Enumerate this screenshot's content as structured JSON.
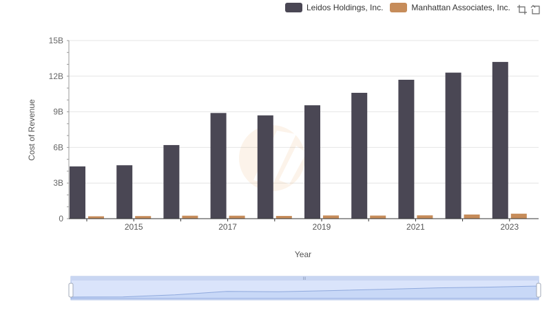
{
  "chart_data": {
    "type": "bar",
    "title": "",
    "xlabel": "Year",
    "ylabel": "Cost of Revenue",
    "categories": [
      "2014",
      "2015",
      "2016",
      "2017",
      "2018",
      "2019",
      "2020",
      "2021",
      "2022",
      "2023"
    ],
    "x_tick_labels": [
      "2015",
      "2017",
      "2019",
      "2021",
      "2023"
    ],
    "y_tick_labels": [
      "0",
      "3B",
      "6B",
      "9B",
      "12B",
      "15B"
    ],
    "ylim": [
      0,
      15
    ],
    "y_unit": "billions",
    "series": [
      {
        "name": "Leidos Holdings, Inc.",
        "color": "#4a4754",
        "values": [
          4.4,
          4.5,
          6.2,
          8.9,
          8.7,
          9.55,
          10.6,
          11.7,
          12.3,
          13.2
        ]
      },
      {
        "name": "Manhattan Associates, Inc.",
        "color": "#c68c5a",
        "values": [
          0.2,
          0.22,
          0.25,
          0.25,
          0.23,
          0.27,
          0.26,
          0.28,
          0.35,
          0.42
        ]
      }
    ],
    "legend_position": "top-right",
    "grid": true
  },
  "toolbar": {
    "zoom_icon": "zoom-box-icon",
    "reset_icon": "reset-icon"
  }
}
